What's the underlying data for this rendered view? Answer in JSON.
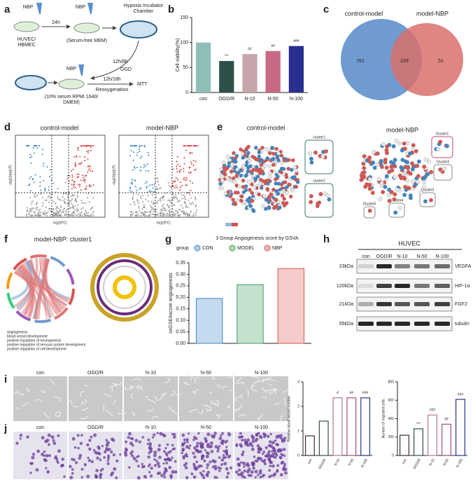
{
  "panel_labels": [
    "a",
    "b",
    "c",
    "d",
    "e",
    "f",
    "g",
    "h",
    "i",
    "j"
  ],
  "a": {
    "drug": [
      "NBP",
      "NBP",
      "NBP"
    ],
    "step1": "24h",
    "chamber": [
      "Hypoxia Incubator",
      "Chamber"
    ],
    "cells": [
      "HUVEC/",
      "HBMEC"
    ],
    "medium1": "(Serum-free MEM)",
    "step2": "12h/8h",
    "ogd": "OGD",
    "step3": "12h/18h",
    "reox": "Reoxygenation",
    "mtt": "MTT",
    "medium2": [
      "(10% serum RPMI 1640/",
      "DMEM)"
    ]
  },
  "c": {
    "sets": [
      "control-model",
      "model-NBP"
    ],
    "counts": [
      781,
      128,
      51
    ]
  },
  "d": {
    "titles": [
      "control-model",
      "model-NBP"
    ],
    "xlabel": "log2(FC)",
    "ylabel": "-log10(adj.P)"
  },
  "e": {
    "titles": [
      "control-model",
      "model-NBP"
    ],
    "clusters_left": [
      "cluster1",
      "cluster2"
    ],
    "clusters_right": [
      "Cluster1",
      "Cluster2",
      "Cluster3",
      "Cluster4",
      "Cluster5"
    ]
  },
  "f": {
    "title": "model-NBP: cluster1",
    "terms": [
      "angiogenesis",
      "blood vessel development",
      "positive regulation of neurogenesis",
      "positive regulation of nervous system development",
      "positive regulation of cell development"
    ]
  },
  "h": {
    "cell": "HUVEC",
    "lanes": [
      "con",
      "OGD/R",
      "N-10",
      "N-50",
      "N-100"
    ],
    "sizes": [
      "23kDa",
      "120kDa",
      "21kDa",
      "55kDa"
    ],
    "proteins": [
      "VEGFA",
      "HIF-1α",
      "FGF2",
      "tubulin"
    ]
  },
  "i": {
    "groups": [
      "con",
      "OGD/R",
      "N-10",
      "N-50",
      "N-100"
    ]
  },
  "j": {
    "groups": [
      "con",
      "OGD/R",
      "N-10",
      "N-50",
      "N-100"
    ]
  },
  "chart_data": [
    {
      "type": "bar",
      "ylabel": "Cell viability(%)",
      "categories": [
        "con",
        "OGD/R",
        "N-10",
        "N-50",
        "N-100"
      ],
      "values": [
        100,
        63,
        77,
        83,
        93
      ],
      "annotations": [
        null,
        "***",
        "##",
        "##",
        "###"
      ],
      "colors": [
        "#8fbfb8",
        "#2f4f4a",
        "#c7a6ab",
        "#c86a83",
        "#2a2f8f"
      ],
      "style": "solid",
      "ylim": [
        0,
        150
      ],
      "yticks": [
        0,
        50,
        100,
        150
      ]
    },
    {
      "type": "bar",
      "title": "3 Group Angiogenesis score by GSVA",
      "legend_title": "group",
      "ylabel": "ssGSEAscore angiogenesis",
      "categories": [
        "CON",
        "MODEL",
        "NBP"
      ],
      "values": [
        0.195,
        0.255,
        0.325
      ],
      "colors": [
        "#3f86c6",
        "#3c9a5c",
        "#d9534f"
      ],
      "style": "light",
      "ylim": [
        0,
        0.35
      ],
      "yticks": [
        {
          "value": 0,
          "label": "0.00"
        },
        {
          "value": 0.05,
          "label": "0.05"
        },
        {
          "value": 0.1,
          "label": "0.10"
        },
        {
          "value": 0.15,
          "label": "0.15"
        },
        {
          "value": 0.2,
          "label": "0.20"
        },
        {
          "value": 0.25,
          "label": "0.25"
        },
        {
          "value": 0.3,
          "label": "0.30"
        },
        {
          "value": 0.35,
          "label": "0.35"
        }
      ]
    },
    {
      "type": "bar",
      "ylabel": "Relative blood vessel number",
      "categories": [
        "con",
        "OGD/R",
        "N-10",
        "N-50",
        "N-100"
      ],
      "values": [
        0.8,
        1.4,
        2.35,
        2.35,
        2.35
      ],
      "annotations": [
        null,
        null,
        "#",
        "##",
        "###"
      ],
      "colors": [
        "#333333",
        "#2f4f4a",
        "#b07a88",
        "#a0506e",
        "#2a2f8f"
      ],
      "style": "outline",
      "ylim": [
        0,
        3
      ],
      "yticks": [
        0,
        1,
        2,
        3
      ]
    },
    {
      "type": "bar",
      "ylabel": "Number of migrated cells",
      "categories": [
        "con",
        "OGD/R",
        "N-10",
        "N-50",
        "N-100"
      ],
      "values": [
        220,
        290,
        440,
        340,
        610
      ],
      "annotations": [
        null,
        "***",
        "###",
        "##",
        "###"
      ],
      "colors": [
        "#333333",
        "#2f4f4a",
        "#b07a88",
        "#a0506e",
        "#2a2f8f"
      ],
      "style": "outline",
      "ylim": [
        0,
        800
      ],
      "yticks": [
        0,
        200,
        400,
        600,
        800
      ]
    }
  ]
}
